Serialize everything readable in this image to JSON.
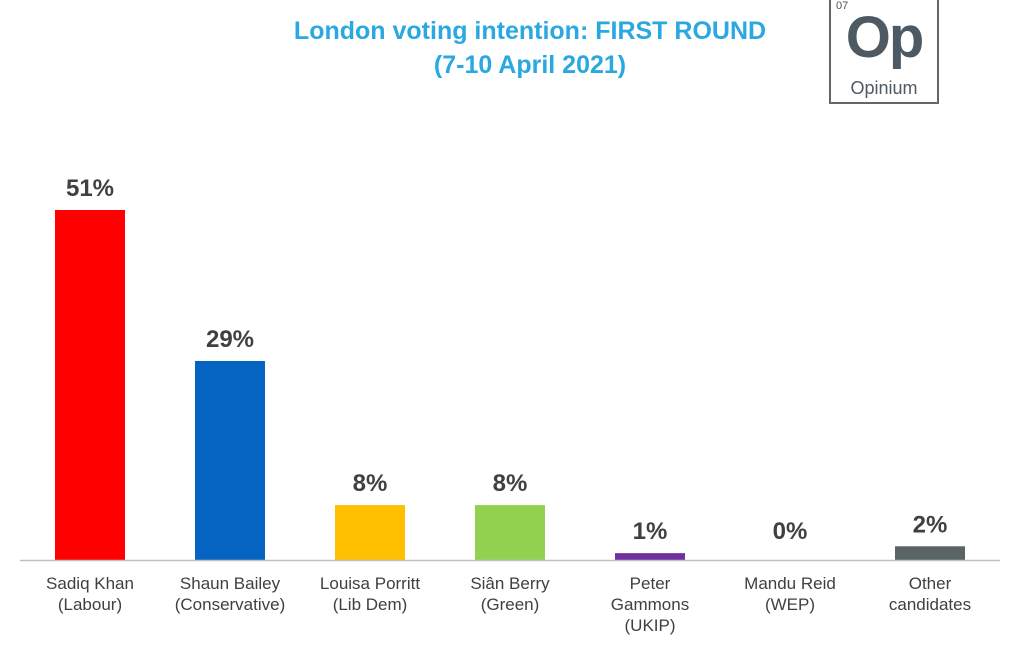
{
  "title": "London voting intention: FIRST ROUND",
  "subtitle": "(7-10 April 2021)",
  "logo": {
    "number": "07",
    "symbol": "Op",
    "name": "Opinium"
  },
  "chart_data": {
    "type": "bar",
    "categories": [
      [
        "Sadiq Khan",
        "(Labour)"
      ],
      [
        "Shaun Bailey",
        "(Conservative)"
      ],
      [
        "Louisa Porritt",
        "(Lib Dem)"
      ],
      [
        "Siân Berry",
        "(Green)"
      ],
      [
        "Peter",
        "Gammons",
        "(UKIP)"
      ],
      [
        "Mandu Reid",
        "(WEP)"
      ],
      [
        "Other",
        "candidates"
      ]
    ],
    "values": [
      51,
      29,
      8,
      8,
      1,
      0,
      2
    ],
    "value_labels": [
      "51%",
      "29%",
      "8%",
      "8%",
      "1%",
      "0%",
      "2%"
    ],
    "colors": [
      "#ff0000",
      "#0563c1",
      "#ffc000",
      "#92d050",
      "#7030a0",
      "#ffffff",
      "#5a6464"
    ],
    "ylim": [
      0,
      51
    ],
    "grid": false,
    "legend": "none"
  }
}
